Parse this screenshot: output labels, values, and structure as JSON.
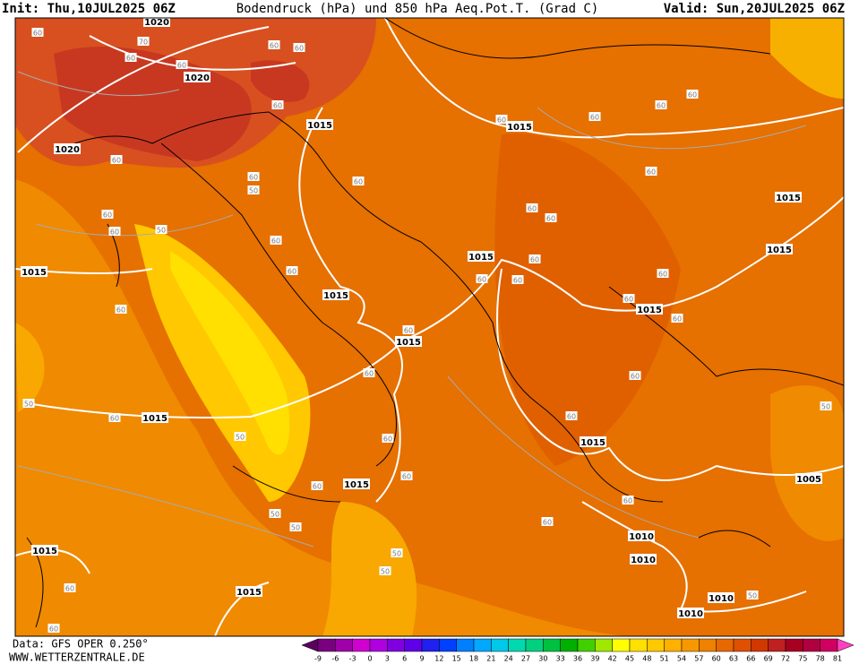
{
  "header": {
    "init": "Init: Thu,10JUL2025 06Z",
    "title": "Bodendruck (hPa) und 850 hPa Aeq.Pot.T. (Grad C)",
    "valid": "Valid: Sun,20JUL2025 06Z"
  },
  "footer": {
    "data": "Data: GFS OPER 0.250°",
    "site": "WWW.WETTERZENTRALE.DE"
  },
  "map": {
    "isobar_labels": [
      "1020",
      "1020",
      "1020",
      "1015",
      "1015",
      "1015",
      "1015",
      "1015",
      "1015",
      "1015",
      "1015",
      "1015",
      "1015",
      "1015",
      "1015",
      "1005",
      "1015",
      "1010",
      "1010",
      "1015",
      "1010",
      "1010"
    ],
    "theta_labels": [
      "60",
      "70",
      "60",
      "60",
      "60",
      "60",
      "60",
      "60",
      "60",
      "50",
      "60",
      "60",
      "50",
      "60",
      "60",
      "60",
      "60",
      "60",
      "60",
      "60",
      "60",
      "60",
      "60",
      "60",
      "60",
      "60",
      "60",
      "60",
      "60",
      "60",
      "60",
      "60",
      "60",
      "50",
      "60",
      "50",
      "60",
      "60",
      "50",
      "60",
      "60",
      "50",
      "50",
      "60",
      "60",
      "50",
      "50",
      "60",
      "50",
      "60"
    ]
  },
  "colorbar": {
    "labels": [
      "-9",
      "-6",
      "-3",
      "0",
      "3",
      "6",
      "9",
      "12",
      "15",
      "18",
      "21",
      "24",
      "27",
      "30",
      "33",
      "36",
      "39",
      "42",
      "45",
      "48",
      "51",
      "54",
      "57",
      "60",
      "63",
      "66",
      "69",
      "72",
      "75",
      "78",
      "81"
    ],
    "colors": [
      "#5a0060",
      "#7a0080",
      "#a000a8",
      "#d000d0",
      "#b000e0",
      "#8000e0",
      "#6000e8",
      "#2020f0",
      "#0040ff",
      "#0080ff",
      "#00a8ff",
      "#00c8e8",
      "#00d8b0",
      "#00d080",
      "#00c040",
      "#00b000",
      "#40d000",
      "#a0e800",
      "#ffff00",
      "#ffe000",
      "#ffc800",
      "#ffb000",
      "#f89800",
      "#f08000",
      "#e86800",
      "#e05000",
      "#d03800",
      "#c02020",
      "#a80020",
      "#b00040",
      "#d00060",
      "#ff40c0"
    ]
  }
}
